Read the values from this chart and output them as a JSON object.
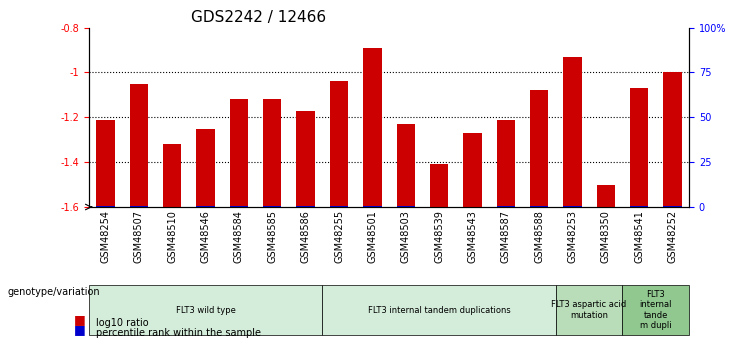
{
  "title": "GDS2242 / 12466",
  "samples": [
    "GSM48254",
    "GSM48507",
    "GSM48510",
    "GSM48546",
    "GSM48584",
    "GSM48585",
    "GSM48586",
    "GSM48255",
    "GSM48501",
    "GSM48503",
    "GSM48539",
    "GSM48543",
    "GSM48587",
    "GSM48588",
    "GSM48253",
    "GSM48350",
    "GSM48541",
    "GSM48252"
  ],
  "log10_ratio": [
    -1.21,
    -1.05,
    -1.32,
    -1.25,
    -1.12,
    -1.12,
    -1.17,
    -1.04,
    -0.89,
    -1.23,
    -1.41,
    -1.27,
    -1.21,
    -1.08,
    -0.93,
    -1.5,
    -1.07,
    -1.0
  ],
  "percentile_rank": [
    4,
    5,
    3,
    4,
    5,
    4,
    4,
    5,
    4,
    4,
    3,
    3,
    4,
    5,
    5,
    2,
    4,
    5
  ],
  "groups": [
    {
      "label": "FLT3 wild type",
      "start": 0,
      "end": 7,
      "color": "#d4edda"
    },
    {
      "label": "FLT3 internal tandem duplications",
      "start": 7,
      "end": 14,
      "color": "#d4edda"
    },
    {
      "label": "FLT3 aspartic acid\nmutation",
      "start": 14,
      "end": 16,
      "color": "#b8ddb8"
    },
    {
      "label": "FLT3\ninternal\ntande\nm dupli",
      "start": 16,
      "end": 18,
      "color": "#90c890"
    }
  ],
  "ylim_left": [
    -1.6,
    -0.8
  ],
  "ylim_right": [
    0,
    100
  ],
  "bar_color_red": "#cc0000",
  "bar_color_blue": "#0000cc",
  "grid_color": "#000000",
  "bg_color": "#ffffff",
  "legend_label_red": "log10 ratio",
  "legend_label_blue": "percentile rank within the sample",
  "genotype_label": "genotype/variation",
  "title_fontsize": 11,
  "axis_fontsize": 8,
  "tick_fontsize": 7
}
